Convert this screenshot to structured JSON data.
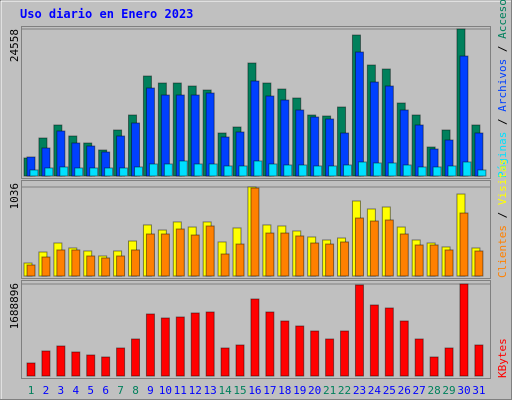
{
  "chart_data": [
    {
      "type": "bar",
      "title": "Uso diario en Enero 2023",
      "legend_separator": " / ",
      "ylim": [
        0,
        24558
      ],
      "yticks": [
        24558
      ],
      "series": [
        {
          "name": "Accesos",
          "color": "#00805c",
          "values": [
            3006,
            6346,
            8517,
            6680,
            5511,
            4342,
            7682,
            10187,
            16700,
            15531,
            15531,
            15030,
            14362,
            7181,
            8183,
            18871,
            15531,
            14529,
            13026,
            10187,
            10020,
            11523,
            23547,
            18537,
            17869,
            12191,
            10187,
            4843,
            7682,
            24558,
            8517
          ]
        },
        {
          "name": "Archivos",
          "color": "#0040ff",
          "values": [
            3173,
            4676,
            7515,
            5511,
            5010,
            4008,
            6680,
            8851,
            14696,
            13527,
            13527,
            13527,
            13861,
            6513,
            7348,
            15865,
            13360,
            12692,
            11022,
            9853,
            9519,
            7181,
            20708,
            15698,
            15030,
            11022,
            8517,
            4509,
            6012,
            20040,
            7181
          ]
        },
        {
          "name": "Páginas",
          "color": "#00e0ff",
          "values": [
            1002,
            1336,
            1503,
            1336,
            1336,
            1336,
            1336,
            1503,
            2004,
            2004,
            2505,
            2004,
            2004,
            1670,
            1670,
            2505,
            2004,
            1837,
            1837,
            1670,
            1670,
            1837,
            2338,
            2171,
            2171,
            1837,
            1503,
            1503,
            1670,
            2338,
            1002
          ]
        }
      ]
    },
    {
      "type": "bar",
      "ylim": [
        0,
        1036
      ],
      "yticks": [
        1036
      ],
      "series": [
        {
          "name": "Visitas",
          "color": "#ffff00",
          "values": [
            151,
            279,
            384,
            326,
            291,
            233,
            291,
            407,
            594,
            535,
            629,
            570,
            629,
            396,
            559,
            1036,
            594,
            582,
            524,
            454,
            419,
            442,
            873,
            780,
            803,
            570,
            419,
            384,
            338,
            954,
            326
          ]
        },
        {
          "name": "Clientes",
          "color": "#ff8000",
          "values": [
            128,
            221,
            303,
            303,
            233,
            210,
            233,
            303,
            489,
            489,
            547,
            477,
            582,
            256,
            372,
            1024,
            500,
            500,
            466,
            384,
            372,
            396,
            675,
            640,
            652,
            489,
            361,
            361,
            303,
            733,
            291
          ]
        }
      ]
    },
    {
      "type": "bar",
      "ylim": [
        0,
        1688896
      ],
      "yticks": [
        1688896
      ],
      "categories": [
        "1",
        "2",
        "3",
        "4",
        "5",
        "6",
        "7",
        "8",
        "9",
        "10",
        "11",
        "12",
        "13",
        "14",
        "15",
        "16",
        "17",
        "18",
        "19",
        "20",
        "21",
        "22",
        "23",
        "24",
        "25",
        "26",
        "27",
        "28",
        "29",
        "30",
        "31"
      ],
      "category_colors": [
        "#00805c",
        "#0000ff",
        "#0000ff",
        "#0000ff",
        "#0000ff",
        "#0000ff",
        "#00805c",
        "#00805c",
        "#0000ff",
        "#0000ff",
        "#0000ff",
        "#0000ff",
        "#0000ff",
        "#00805c",
        "#00805c",
        "#0000ff",
        "#0000ff",
        "#0000ff",
        "#0000ff",
        "#0000ff",
        "#00805c",
        "#00805c",
        "#0000ff",
        "#0000ff",
        "#0000ff",
        "#0000ff",
        "#0000ff",
        "#00805c",
        "#00805c",
        "#0000ff",
        "#0000ff"
      ],
      "series": [
        {
          "name": "KBytes",
          "color": "#ff0000",
          "values": [
            238654,
            458950,
            550740,
            440592,
            385518,
            348802,
            514024,
            679246,
            1138196,
            1064764,
            1083122,
            1156554,
            1174912,
            514024,
            569098,
            1413566,
            1174912,
            1009690,
            917900,
            826110,
            679246,
            826110,
            1670578,
            1303418,
            1248344,
            1009690,
            679246,
            348802,
            514024,
            1688896,
            569098
          ]
        }
      ]
    }
  ]
}
